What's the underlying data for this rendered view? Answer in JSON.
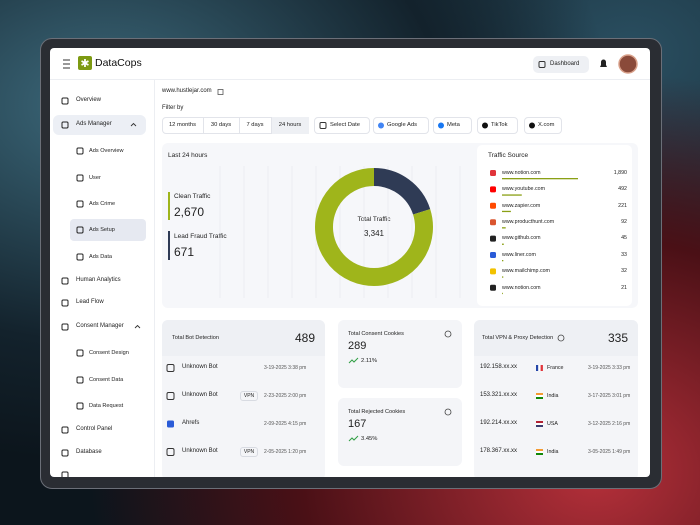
{
  "header": {
    "brand": "DataCops",
    "button": "Dashboard"
  },
  "sidebar": {
    "items": [
      {
        "label": "Overview"
      },
      {
        "label": "Ads Manager",
        "children": [
          "Ads Overview",
          "User",
          "Ads Crime",
          "Ads Setup",
          "Ads Data"
        ]
      },
      {
        "label": "Human Analytics"
      },
      {
        "label": "Lead Flow"
      },
      {
        "label": "Consent Manager",
        "children": [
          "Consent Design",
          "Consent Data",
          "Data Request"
        ]
      },
      {
        "label": "Control Panel"
      },
      {
        "label": "Database"
      }
    ]
  },
  "site": "www.hustlejar.com",
  "filter": {
    "label": "Filter by",
    "ranges": [
      "12 months",
      "30 days",
      "7 days",
      "24 hours"
    ],
    "date": "Select Date",
    "platforms": [
      "Google Ads",
      "Meta",
      "TikTok",
      "X.com"
    ]
  },
  "traffic": {
    "title": "Last 24 hours",
    "clean": {
      "label": "Clean Traffic",
      "value": 2670,
      "value_label": "2,670",
      "color": "#9fb51b"
    },
    "fraud": {
      "label": "Lead Fraud Traffic",
      "value": 671,
      "color": "#2f3b55"
    },
    "total": {
      "label": "Total Traffic",
      "value": 3341,
      "value_label": "3,341"
    },
    "source": {
      "title": "Traffic Source",
      "rows": [
        {
          "site": "www.notion.com",
          "value": 1890,
          "value_label": "1,890"
        },
        {
          "site": "www.youtube.com",
          "value": 492
        },
        {
          "site": "www.zapier.com",
          "value": 221
        },
        {
          "site": "www.producthunt.com",
          "value": 92
        },
        {
          "site": "www.github.com",
          "value": 45
        },
        {
          "site": "www.liner.com",
          "value": 33
        },
        {
          "site": "www.mailchimp.com",
          "value": 32
        },
        {
          "site": "www.notion.com",
          "value": 21
        }
      ]
    }
  },
  "bots": {
    "title": "Total Bot Detection",
    "value": 489,
    "rows": [
      {
        "name": "Unknown Bot",
        "date": "3-19-2025 3:38 pm"
      },
      {
        "name": "Unknown Bot",
        "tag": "VPN",
        "date": "2-23-2025 2:00 pm"
      },
      {
        "name": "Ahrefs",
        "date": "2-09-2025 4:15 pm"
      },
      {
        "name": "Unknown Bot",
        "tag": "VPN",
        "date": "2-05-2025 1:20 pm"
      }
    ]
  },
  "consent": {
    "title": "Total Consent Cookies",
    "value": 289,
    "change": "2.11%"
  },
  "rejected": {
    "title": "Total Rejected Cookies",
    "value": 167,
    "change": "3.45%"
  },
  "vpn": {
    "title": "Total VPN & Proxy Detection",
    "value": 335,
    "rows": [
      {
        "ip": "192.158.xx.xx",
        "country": "France",
        "date": "3-19-2025 3:33 pm"
      },
      {
        "ip": "153.321.xx.xx",
        "country": "India",
        "date": "3-17-2025 3:01 pm"
      },
      {
        "ip": "192.214.xx.xx",
        "country": "USA",
        "date": "3-12-2025 2:16 pm"
      },
      {
        "ip": "178.367.xx.xx",
        "country": "India",
        "date": "3-05-2025 1:49 pm"
      }
    ]
  }
}
